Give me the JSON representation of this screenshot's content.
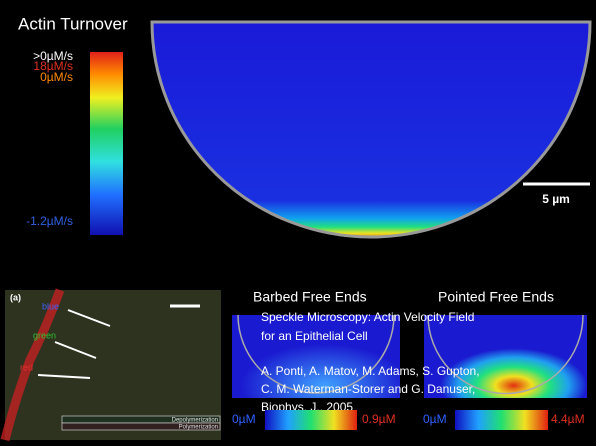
{
  "title": "Actin Turnover",
  "colorbar": {
    "labels": [
      ">0µM/s",
      "18µM/s",
      "0µM/s",
      "-1.2µM/s"
    ]
  },
  "scale_bar": "5 µm",
  "inset": {
    "panel_label": "(a)",
    "labels": [
      "blue",
      "green",
      "red"
    ],
    "legend": [
      "Depolymerization",
      "Polymerization"
    ]
  },
  "panels": [
    {
      "title": "Barbed Free Ends",
      "min": "0µM",
      "max": "0.9µM"
    },
    {
      "title": "Pointed Free Ends",
      "min": "0µM",
      "max": "4.4µM"
    }
  ],
  "citation": {
    "title_lines": [
      "Speckle Microscopy: Actin Velocity Field",
      "for an Epithelial Cell"
    ],
    "author_lines": [
      "A. Ponti, A. Matov, M. Adams, S. Gupton,",
      "C. M. Waterman-Storer and G. Danuser,"
    ],
    "journal": "Biophys. J., 2005"
  }
}
